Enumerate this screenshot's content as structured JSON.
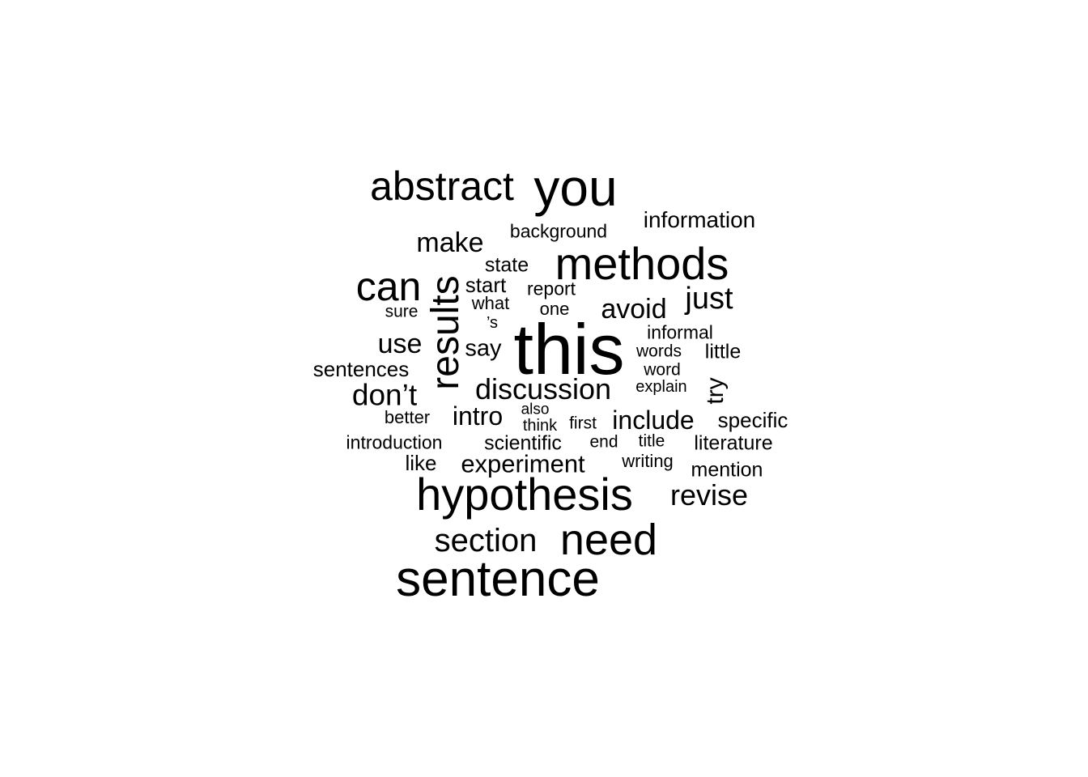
{
  "words": [
    {
      "text": "this",
      "weight": 100
    },
    {
      "text": "you",
      "weight": 72
    },
    {
      "text": "sentence",
      "weight": 70
    },
    {
      "text": "hypothesis",
      "weight": 64
    },
    {
      "text": "methods",
      "weight": 64
    },
    {
      "text": "need",
      "weight": 62
    },
    {
      "text": "abstract",
      "weight": 56
    },
    {
      "text": "results",
      "weight": 56
    },
    {
      "text": "can",
      "weight": 56
    },
    {
      "text": "section",
      "weight": 46
    },
    {
      "text": "don’t",
      "weight": 42
    },
    {
      "text": "discussion",
      "weight": 42
    },
    {
      "text": "just",
      "weight": 42
    },
    {
      "text": "make",
      "weight": 40
    },
    {
      "text": "revise",
      "weight": 40
    },
    {
      "text": "avoid",
      "weight": 38
    },
    {
      "text": "use",
      "weight": 38
    },
    {
      "text": "experiment",
      "weight": 36
    },
    {
      "text": "intro",
      "weight": 36
    },
    {
      "text": "include",
      "weight": 36
    },
    {
      "text": "say",
      "weight": 33
    },
    {
      "text": "try",
      "weight": 33
    },
    {
      "text": "information",
      "weight": 32
    },
    {
      "text": "like",
      "weight": 30
    },
    {
      "text": "sentences",
      "weight": 30
    },
    {
      "text": "start",
      "weight": 30
    },
    {
      "text": "specific",
      "weight": 29
    },
    {
      "text": "state",
      "weight": 28
    },
    {
      "text": "mention",
      "weight": 28
    },
    {
      "text": "literature",
      "weight": 28
    },
    {
      "text": "scientific",
      "weight": 28
    },
    {
      "text": "little",
      "weight": 28
    },
    {
      "text": "background",
      "weight": 26
    },
    {
      "text": "introduction",
      "weight": 26
    },
    {
      "text": "informal",
      "weight": 26
    },
    {
      "text": "report",
      "weight": 26
    },
    {
      "text": "better",
      "weight": 25
    },
    {
      "text": "one",
      "weight": 25
    },
    {
      "text": "what",
      "weight": 25
    },
    {
      "text": "writing",
      "weight": 25
    },
    {
      "text": "sure",
      "weight": 24
    },
    {
      "text": "words",
      "weight": 24
    },
    {
      "text": "word",
      "weight": 24
    },
    {
      "text": "first",
      "weight": 24
    },
    {
      "text": "end",
      "weight": 24
    },
    {
      "text": "title",
      "weight": 24
    },
    {
      "text": "think",
      "weight": 23
    },
    {
      "text": "explain",
      "weight": 23
    },
    {
      "text": "’s",
      "weight": 23
    },
    {
      "text": "also",
      "weight": 22
    }
  ]
}
